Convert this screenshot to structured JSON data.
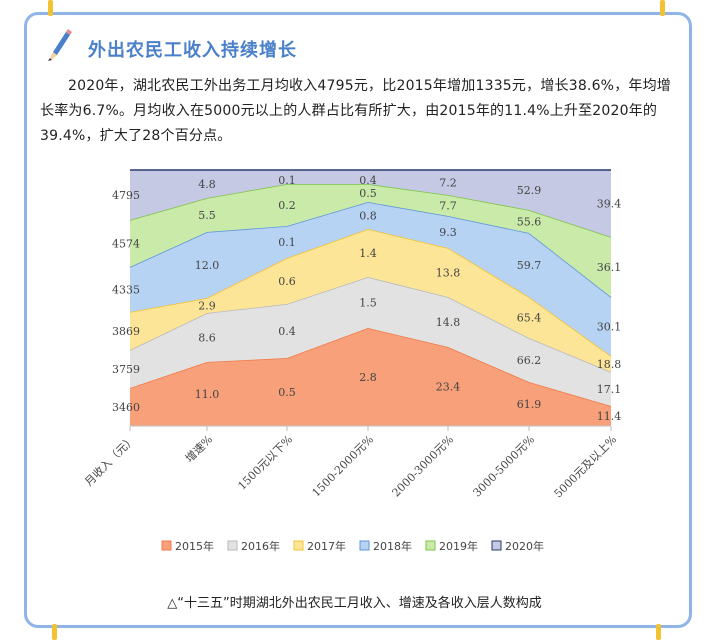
{
  "heading": "外出农民工收入持续增长",
  "paragraph": "2020年，湖北农民工外出务工月均收入4795元，比2015年增加1335元，增长38.6%，年均增长率为6.7%。月均收入在5000元以上的人群占比有所扩大，由2015年的11.4%上升至2020年的39.4%，扩大了28个百分点。",
  "caption": "△“十三五”时期湖北外出农民工月收入、增速及各收入层人数构成",
  "chart_data": {
    "type": "area",
    "categories": [
      "月收入（元）",
      "增速%",
      "1500元以下%",
      "1500-2000元%",
      "2000-3000元%",
      "3000-5000元%",
      "5000元及以上%"
    ],
    "series": [
      {
        "name": "2015年",
        "color": "#f7a07a",
        "labels": [
          "3460",
          "11.0",
          "0.5",
          "2.8",
          "23.4",
          "61.9",
          "11.4"
        ]
      },
      {
        "name": "2016年",
        "color": "#e2e2e2",
        "labels": [
          "3759",
          "8.6",
          "0.4",
          "1.5",
          "14.8",
          "66.2",
          "17.1"
        ]
      },
      {
        "name": "2017年",
        "color": "#fde597",
        "labels": [
          "3869",
          "2.9",
          "0.6",
          "1.4",
          "13.8",
          "65.4",
          "18.8"
        ]
      },
      {
        "name": "2018年",
        "color": "#b6d3f3",
        "labels": [
          "4335",
          "12.0",
          "0.1",
          "0.8",
          "9.3",
          "59.7",
          "30.1"
        ]
      },
      {
        "name": "2019年",
        "color": "#c9eaa9",
        "labels": [
          "4574",
          "5.5",
          "0.2",
          "0.5",
          "7.7",
          "55.6",
          "36.1"
        ]
      },
      {
        "name": "2020年",
        "color": "#c5c9e4",
        "labels": [
          "4795",
          "4.8",
          "0.1",
          "0.4",
          "7.2",
          "52.9",
          "39.4"
        ]
      }
    ],
    "legend_position": "bottom",
    "grid": false
  }
}
